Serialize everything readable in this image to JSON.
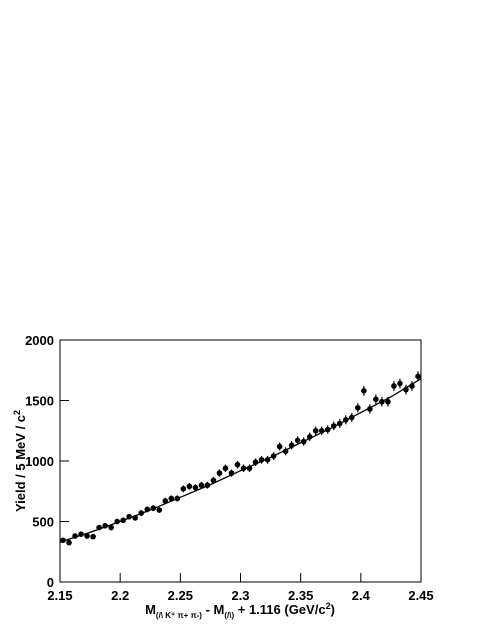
{
  "chart_data": {
    "type": "scatter",
    "y_label_parts": [
      "Yield / 5 MeV / c",
      "2"
    ],
    "x_label_parts": [
      "M",
      "(/\\ K⁺ π+ π-)",
      " - M",
      "(/\\)",
      " + 1.116 (GeV/c",
      "2",
      ")"
    ],
    "xlim": [
      2.15,
      2.45
    ],
    "xticks": [
      2.15,
      2.2,
      2.25,
      2.3,
      2.35,
      2.4,
      2.45
    ],
    "ylim": [
      0,
      2000
    ],
    "yticks": [
      0,
      500,
      1000,
      1500,
      2000
    ],
    "color": "#000000",
    "x": [
      2.1525,
      2.1575,
      2.1625,
      2.1675,
      2.1725,
      2.1775,
      2.1825,
      2.1875,
      2.1925,
      2.1975,
      2.2025,
      2.2075,
      2.2125,
      2.2175,
      2.2225,
      2.2275,
      2.2325,
      2.2375,
      2.2425,
      2.2475,
      2.2525,
      2.2575,
      2.2625,
      2.2675,
      2.2725,
      2.2775,
      2.2825,
      2.2875,
      2.2925,
      2.2975,
      2.3025,
      2.3075,
      2.3125,
      2.3175,
      2.3225,
      2.3275,
      2.3325,
      2.3375,
      2.3425,
      2.3475,
      2.3525,
      2.3575,
      2.3625,
      2.3675,
      2.3725,
      2.3775,
      2.3825,
      2.3875,
      2.3925,
      2.3975,
      2.4025,
      2.4075,
      2.4125,
      2.4175,
      2.4225,
      2.4275,
      2.4325,
      2.4375,
      2.4425,
      2.4475
    ],
    "values": [
      345,
      325,
      380,
      395,
      380,
      375,
      450,
      465,
      450,
      500,
      510,
      540,
      530,
      570,
      600,
      610,
      595,
      670,
      690,
      690,
      770,
      790,
      780,
      800,
      800,
      840,
      900,
      940,
      900,
      970,
      940,
      940,
      990,
      1010,
      1010,
      1040,
      1120,
      1080,
      1130,
      1170,
      1160,
      1200,
      1250,
      1250,
      1260,
      1290,
      1310,
      1340,
      1360,
      1440,
      1580,
      1430,
      1510,
      1490,
      1490,
      1620,
      1640,
      1590,
      1620,
      1700
    ],
    "errors": [
      19,
      18,
      19,
      20,
      19,
      19,
      21,
      22,
      21,
      22,
      23,
      23,
      23,
      24,
      24,
      25,
      24,
      26,
      26,
      26,
      28,
      28,
      28,
      28,
      28,
      29,
      30,
      31,
      30,
      31,
      31,
      31,
      31,
      32,
      32,
      32,
      33,
      33,
      34,
      34,
      34,
      35,
      35,
      35,
      35,
      36,
      36,
      37,
      37,
      38,
      40,
      38,
      39,
      39,
      39,
      40,
      40,
      40,
      40,
      41
    ],
    "fit": {
      "x": [
        2.15,
        2.175,
        2.2,
        2.225,
        2.25,
        2.275,
        2.3,
        2.325,
        2.35,
        2.375,
        2.4,
        2.425,
        2.45
      ],
      "values": [
        330,
        410,
        500,
        595,
        700,
        805,
        920,
        1030,
        1150,
        1270,
        1400,
        1530,
        1680
      ]
    }
  }
}
